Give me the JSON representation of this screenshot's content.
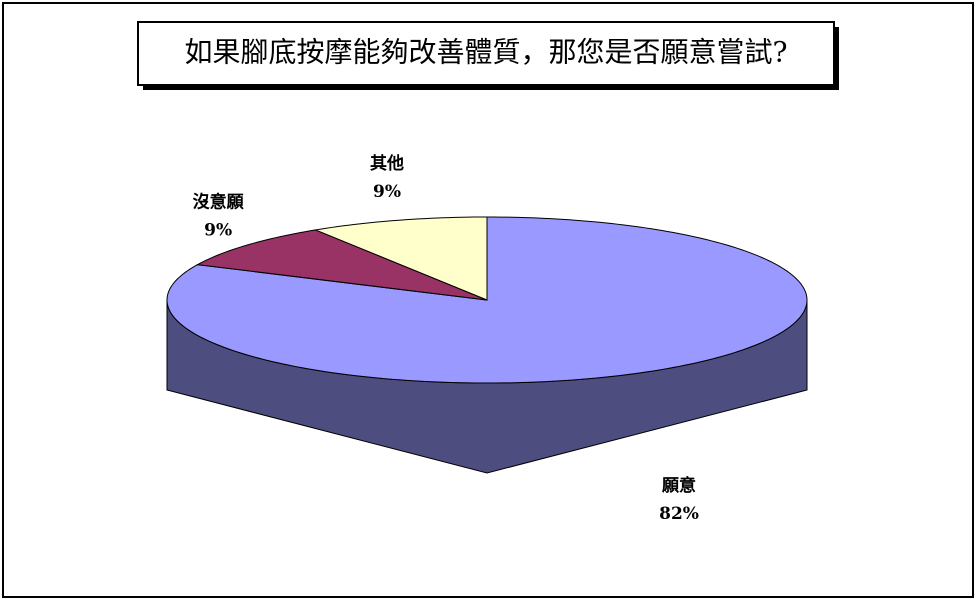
{
  "chart_data": {
    "type": "pie",
    "title": "如果腳底按摩能夠改善體質，那您是否願意嘗試?",
    "categories": [
      "願意",
      "沒意願",
      "其他"
    ],
    "values": [
      82,
      9,
      9
    ],
    "value_labels": [
      "82%",
      "9%",
      "9%"
    ],
    "colors": [
      "#9999ff",
      "#993366",
      "#ffffcc"
    ]
  }
}
